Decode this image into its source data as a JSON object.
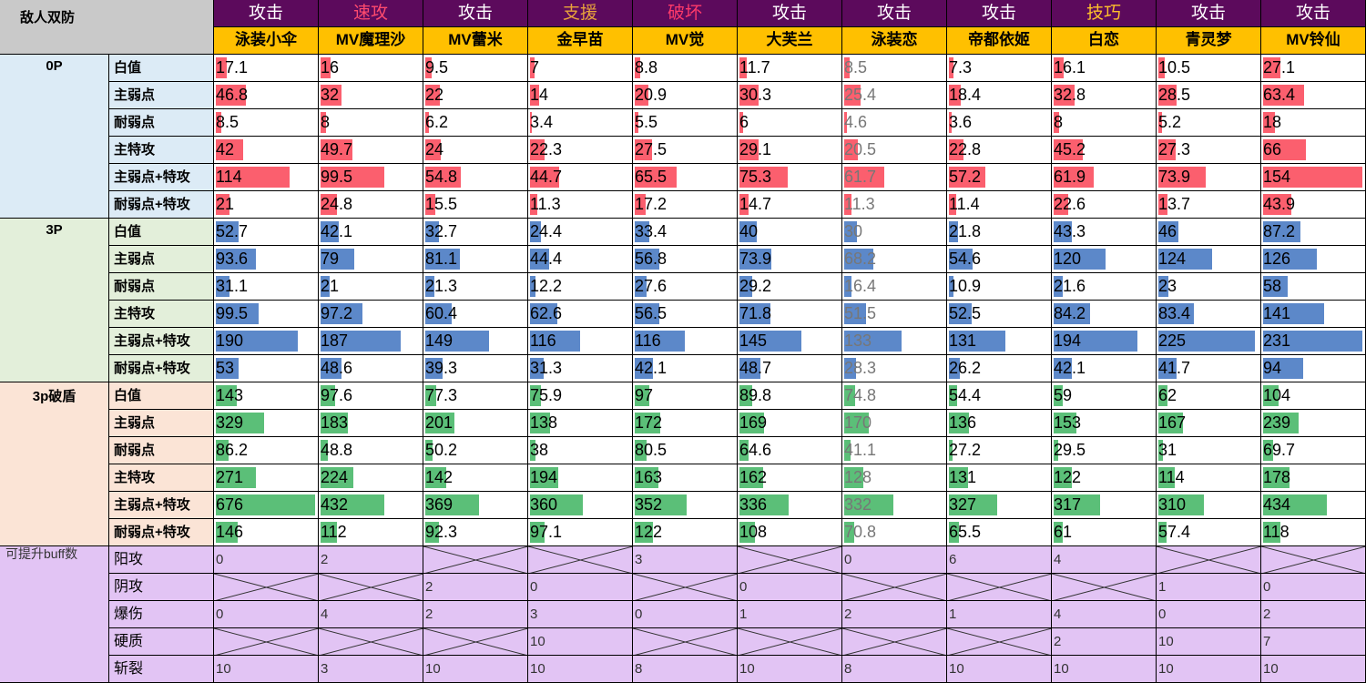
{
  "corner_label": "敌人双防",
  "columns": [
    {
      "type": "攻击",
      "type_color": "#ffffff",
      "name": "泳装小伞"
    },
    {
      "type": "速攻",
      "type_color": "#ff4b6e",
      "name": "MV魔理沙"
    },
    {
      "type": "攻击",
      "type_color": "#ffffff",
      "name": "MV蕾米"
    },
    {
      "type": "支援",
      "type_color": "#e8a33c",
      "name": "金早苗"
    },
    {
      "type": "破坏",
      "type_color": "#ff3a6a",
      "name": "MV觉"
    },
    {
      "type": "攻击",
      "type_color": "#ffffff",
      "name": "大芙兰"
    },
    {
      "type": "攻击",
      "type_color": "#ffffff",
      "name": "泳装恋"
    },
    {
      "type": "攻击",
      "type_color": "#ffffff",
      "name": "帝都依姬"
    },
    {
      "type": "技巧",
      "type_color": "#ffc02b",
      "name": "白恋"
    },
    {
      "type": "攻击",
      "type_color": "#ffffff",
      "name": "青灵梦"
    },
    {
      "type": "攻击",
      "type_color": "#ffffff",
      "name": "MV铃仙"
    }
  ],
  "groups": [
    {
      "label": "0P",
      "bg": "#dcebf6",
      "bar_color": "#fb5f6e",
      "max": 154,
      "rows": [
        {
          "label": "白值",
          "values": [
            "17.1",
            "16",
            "9.5",
            "7",
            "8.8",
            "11.7",
            "8.5",
            "7.3",
            "16.1",
            "10.5",
            "27.1"
          ]
        },
        {
          "label": "主弱点",
          "values": [
            "46.8",
            "32",
            "22",
            "14",
            "20.9",
            "30.3",
            "25.4",
            "18.4",
            "32.8",
            "28.5",
            "63.4"
          ]
        },
        {
          "label": "耐弱点",
          "values": [
            "8.5",
            "8",
            "6.2",
            "3.4",
            "5.5",
            "6",
            "4.6",
            "3.6",
            "8",
            "5.2",
            "18"
          ]
        },
        {
          "label": "主特攻",
          "values": [
            "42",
            "49.7",
            "24",
            "22.3",
            "27.5",
            "29.1",
            "20.5",
            "22.8",
            "45.2",
            "27.3",
            "66"
          ]
        },
        {
          "label": "主弱点+特攻",
          "values": [
            "114",
            "99.5",
            "54.8",
            "44.7",
            "65.5",
            "75.3",
            "61.7",
            "57.2",
            "61.9",
            "73.9",
            "154"
          ]
        },
        {
          "label": "耐弱点+特攻",
          "values": [
            "21",
            "24.8",
            "15.5",
            "11.3",
            "17.2",
            "14.7",
            "11.3",
            "11.4",
            "22.6",
            "13.7",
            "43.9"
          ]
        }
      ]
    },
    {
      "label": "3P",
      "bg": "#e3efda",
      "bar_color": "#5c88c9",
      "max": 231,
      "rows": [
        {
          "label": "白值",
          "values": [
            "52.7",
            "42.1",
            "32.7",
            "24.4",
            "33.4",
            "40",
            "30",
            "21.8",
            "43.3",
            "46",
            "87.2"
          ]
        },
        {
          "label": "主弱点",
          "values": [
            "93.6",
            "79",
            "81.1",
            "44.4",
            "56.8",
            "73.9",
            "68.2",
            "54.6",
            "120",
            "124",
            "126"
          ]
        },
        {
          "label": "耐弱点",
          "values": [
            "31.1",
            "21",
            "21.3",
            "12.2",
            "27.6",
            "29.2",
            "16.4",
            "10.9",
            "21.6",
            "23",
            "58"
          ]
        },
        {
          "label": "主特攻",
          "values": [
            "99.5",
            "97.2",
            "60.4",
            "62.6",
            "56.5",
            "71.8",
            "51.5",
            "52.5",
            "84.2",
            "83.4",
            "141"
          ]
        },
        {
          "label": "主弱点+特攻",
          "values": [
            "190",
            "187",
            "149",
            "116",
            "116",
            "145",
            "133",
            "131",
            "194",
            "225",
            "231"
          ]
        },
        {
          "label": "耐弱点+特攻",
          "values": [
            "53",
            "48.6",
            "39.3",
            "31.3",
            "42.1",
            "48.7",
            "28.3",
            "26.2",
            "42.1",
            "41.7",
            "94"
          ]
        }
      ]
    },
    {
      "label": "3p破盾",
      "bg": "#fbe4d6",
      "bar_color": "#5bbf78",
      "max": 676,
      "rows": [
        {
          "label": "白值",
          "values": [
            "143",
            "97.6",
            "77.3",
            "75.9",
            "97",
            "89.8",
            "74.8",
            "54.4",
            "59",
            "62",
            "104"
          ]
        },
        {
          "label": "主弱点",
          "values": [
            "329",
            "183",
            "201",
            "138",
            "172",
            "169",
            "170",
            "136",
            "153",
            "167",
            "239"
          ]
        },
        {
          "label": "耐弱点",
          "values": [
            "86.2",
            "48.8",
            "50.2",
            "38",
            "80.5",
            "64.6",
            "41.1",
            "27.2",
            "29.5",
            "31",
            "69.7"
          ]
        },
        {
          "label": "主特攻",
          "values": [
            "271",
            "224",
            "142",
            "194",
            "163",
            "162",
            "128",
            "131",
            "122",
            "114",
            "178"
          ]
        },
        {
          "label": "主弱点+特攻",
          "values": [
            "676",
            "432",
            "369",
            "360",
            "352",
            "336",
            "332",
            "327",
            "317",
            "310",
            "434"
          ]
        },
        {
          "label": "耐弱点+特攻",
          "values": [
            "146",
            "112",
            "92.3",
            "97.1",
            "122",
            "108",
            "70.8",
            "65.5",
            "61",
            "57.4",
            "118"
          ]
        }
      ]
    }
  ],
  "buff_section": {
    "label": "可提升buff数",
    "bg": "#e2c4f4",
    "rows": [
      {
        "label": "阳攻",
        "values": [
          "0",
          "2",
          "X",
          "X",
          "3",
          "X",
          "0",
          "6",
          "4",
          "X",
          "X"
        ]
      },
      {
        "label": "阴攻",
        "values": [
          "X",
          "X",
          "2",
          "0",
          "X",
          "0",
          "X",
          "X",
          "X",
          "1",
          "0"
        ]
      },
      {
        "label": "爆伤",
        "values": [
          "0",
          "4",
          "2",
          "3",
          "0",
          "1",
          "2",
          "1",
          "4",
          "0",
          "2"
        ]
      },
      {
        "label": "硬质",
        "values": [
          "X",
          "X",
          "X",
          "10",
          "X",
          "X",
          "X",
          "X",
          "2",
          "10",
          "7"
        ]
      },
      {
        "label": "斩裂",
        "values": [
          "10",
          "3",
          "10",
          "10",
          "8",
          "10",
          "8",
          "10",
          "10",
          "10",
          "10"
        ]
      }
    ]
  }
}
